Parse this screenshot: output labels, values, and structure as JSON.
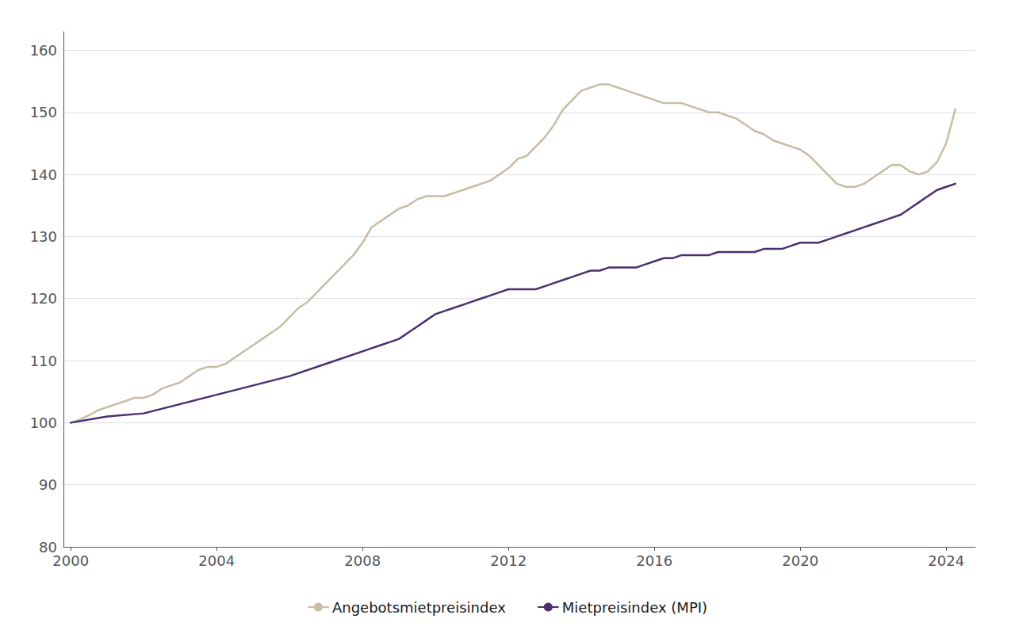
{
  "chart_data": {
    "type": "line",
    "series": [
      {
        "name": "Angebotsmietpreisindex",
        "color": "#c8bca5",
        "x": [
          2000.0,
          2000.25,
          2000.5,
          2000.75,
          2001.0,
          2001.25,
          2001.5,
          2001.75,
          2002.0,
          2002.25,
          2002.5,
          2002.75,
          2003.0,
          2003.25,
          2003.5,
          2003.75,
          2004.0,
          2004.25,
          2004.5,
          2004.75,
          2005.0,
          2005.25,
          2005.5,
          2005.75,
          2006.0,
          2006.25,
          2006.5,
          2006.75,
          2007.0,
          2007.25,
          2007.5,
          2007.75,
          2008.0,
          2008.25,
          2008.5,
          2008.75,
          2009.0,
          2009.25,
          2009.5,
          2009.75,
          2010.0,
          2010.25,
          2010.5,
          2010.75,
          2011.0,
          2011.25,
          2011.5,
          2011.75,
          2012.0,
          2012.25,
          2012.5,
          2012.75,
          2013.0,
          2013.25,
          2013.5,
          2013.75,
          2014.0,
          2014.25,
          2014.5,
          2014.75,
          2015.0,
          2015.25,
          2015.5,
          2015.75,
          2016.0,
          2016.25,
          2016.5,
          2016.75,
          2017.0,
          2017.25,
          2017.5,
          2017.75,
          2018.0,
          2018.25,
          2018.5,
          2018.75,
          2019.0,
          2019.25,
          2019.5,
          2019.75,
          2020.0,
          2020.25,
          2020.5,
          2020.75,
          2021.0,
          2021.25,
          2021.5,
          2021.75,
          2022.0,
          2022.25,
          2022.5,
          2022.75,
          2023.0,
          2023.25,
          2023.5,
          2023.75,
          2024.0,
          2024.25
        ],
        "values": [
          100.0,
          100.5,
          101.2,
          102.0,
          102.5,
          103.0,
          103.5,
          104.0,
          104.0,
          104.5,
          105.5,
          106.0,
          106.5,
          107.5,
          108.5,
          109.0,
          109.0,
          109.5,
          110.5,
          111.5,
          112.5,
          113.5,
          114.5,
          115.5,
          117.0,
          118.5,
          119.5,
          121.0,
          122.5,
          124.0,
          125.5,
          127.0,
          129.0,
          131.5,
          132.5,
          133.5,
          134.5,
          135.0,
          136.0,
          136.5,
          136.5,
          136.5,
          137.0,
          137.5,
          138.0,
          138.5,
          139.0,
          140.0,
          141.0,
          142.5,
          143.0,
          144.5,
          146.0,
          148.0,
          150.5,
          152.0,
          153.5,
          154.0,
          154.5,
          154.5,
          154.0,
          153.5,
          153.0,
          152.5,
          152.0,
          151.5,
          151.5,
          151.5,
          151.0,
          150.5,
          150.0,
          150.0,
          149.5,
          149.0,
          148.0,
          147.0,
          146.5,
          145.5,
          145.0,
          144.5,
          144.0,
          143.0,
          141.5,
          140.0,
          138.5,
          138.0,
          138.0,
          138.5,
          139.5,
          140.5,
          141.5,
          141.5,
          140.5,
          140.0,
          140.5,
          142.0,
          145.0,
          150.5
        ]
      },
      {
        "name": "Mietpreisindex (MPI)",
        "color": "#4b2f6e",
        "x": [
          2000.0,
          2001.0,
          2002.0,
          2003.0,
          2004.0,
          2005.0,
          2006.0,
          2007.0,
          2008.0,
          2008.25,
          2008.5,
          2008.75,
          2009.0,
          2009.25,
          2009.5,
          2009.75,
          2010.0,
          2010.25,
          2010.5,
          2010.75,
          2011.0,
          2011.25,
          2011.5,
          2011.75,
          2012.0,
          2012.25,
          2012.5,
          2012.75,
          2013.0,
          2013.25,
          2013.5,
          2013.75,
          2014.0,
          2014.25,
          2014.5,
          2014.75,
          2015.0,
          2015.25,
          2015.5,
          2015.75,
          2016.0,
          2016.25,
          2016.5,
          2016.75,
          2017.0,
          2017.25,
          2017.5,
          2017.75,
          2018.0,
          2018.25,
          2018.5,
          2018.75,
          2019.0,
          2019.25,
          2019.5,
          2019.75,
          2020.0,
          2020.25,
          2020.5,
          2020.75,
          2021.0,
          2021.25,
          2021.5,
          2021.75,
          2022.0,
          2022.25,
          2022.5,
          2022.75,
          2023.0,
          2023.25,
          2023.5,
          2023.75,
          2024.0,
          2024.25
        ],
        "values": [
          100.0,
          101.0,
          101.5,
          103.0,
          104.5,
          106.0,
          107.5,
          109.5,
          111.5,
          112.0,
          112.5,
          113.0,
          113.5,
          114.5,
          115.5,
          116.5,
          117.5,
          118.0,
          118.5,
          119.0,
          119.5,
          120.0,
          120.5,
          121.0,
          121.5,
          121.5,
          121.5,
          121.5,
          122.0,
          122.5,
          123.0,
          123.5,
          124.0,
          124.5,
          124.5,
          125.0,
          125.0,
          125.0,
          125.0,
          125.5,
          126.0,
          126.5,
          126.5,
          127.0,
          127.0,
          127.0,
          127.0,
          127.5,
          127.5,
          127.5,
          127.5,
          127.5,
          128.0,
          128.0,
          128.0,
          128.5,
          129.0,
          129.0,
          129.0,
          129.5,
          130.0,
          130.5,
          131.0,
          131.5,
          132.0,
          132.5,
          133.0,
          133.5,
          134.5,
          135.5,
          136.5,
          137.5,
          138.0,
          138.5
        ]
      }
    ],
    "xlim": [
      1999.8,
      2024.8
    ],
    "xticks": [
      2000,
      2004,
      2008,
      2012,
      2016,
      2020,
      2024
    ],
    "ylim": [
      80,
      163
    ],
    "yticks": [
      80,
      90,
      100,
      110,
      120,
      130,
      140,
      150,
      160
    ],
    "grid": true,
    "legend": "bottom"
  }
}
